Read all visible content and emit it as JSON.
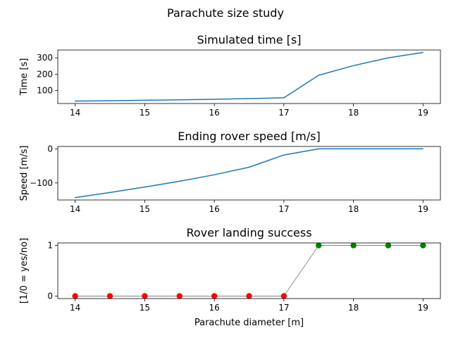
{
  "figure": {
    "suptitle": "Parachute size study"
  },
  "chart_data": [
    {
      "type": "line",
      "title": "Simulated time [s]",
      "xlabel": "",
      "ylabel": "Time [s]",
      "x": [
        14,
        14.5,
        15,
        15.5,
        16,
        16.5,
        17,
        17.5,
        18,
        18.5,
        19
      ],
      "series": [
        {
          "values": [
            35,
            37,
            40,
            43,
            46,
            50,
            55,
            193,
            252,
            300,
            333
          ],
          "color": "#1f77b4"
        }
      ],
      "xlim": [
        13.75,
        19.25
      ],
      "ylim": [
        20,
        348
      ],
      "xticks": [
        14,
        15,
        16,
        17,
        18,
        19
      ],
      "yticks": [
        100,
        200,
        300
      ],
      "grid": false
    },
    {
      "type": "line",
      "title": "Ending rover speed [m/s]",
      "xlabel": "",
      "ylabel": "Speed [m/s]",
      "x": [
        14,
        14.5,
        15,
        15.5,
        16,
        16.5,
        17,
        17.5,
        18,
        18.5,
        19
      ],
      "series": [
        {
          "values": [
            -143,
            -128,
            -112,
            -95,
            -76,
            -54,
            -18,
            0,
            0,
            0,
            0
          ],
          "color": "#1f77b4"
        }
      ],
      "xlim": [
        13.75,
        19.25
      ],
      "ylim": [
        -150,
        7
      ],
      "xticks": [
        14,
        15,
        16,
        17,
        18,
        19
      ],
      "yticks": [
        -100,
        0
      ],
      "grid": false
    },
    {
      "type": "scatter",
      "title": "Rover landing success",
      "xlabel": "Parachute diameter [m]",
      "ylabel": "[1/0 = yes/no]",
      "x": [
        14,
        14.5,
        15,
        15.5,
        16,
        16.5,
        17,
        17.5,
        18,
        18.5,
        19
      ],
      "series": [
        {
          "values": [
            0,
            0,
            0,
            0,
            0,
            0,
            0,
            1,
            1,
            1,
            1
          ],
          "line_color": "#000000",
          "marker_colors": {
            "0": "#ff0000",
            "1": "#008000"
          }
        }
      ],
      "xlim": [
        13.75,
        19.25
      ],
      "ylim": [
        -0.05,
        1.05
      ],
      "xticks": [
        14,
        15,
        16,
        17,
        18,
        19
      ],
      "yticks": [
        0,
        1
      ],
      "grid": false
    }
  ]
}
